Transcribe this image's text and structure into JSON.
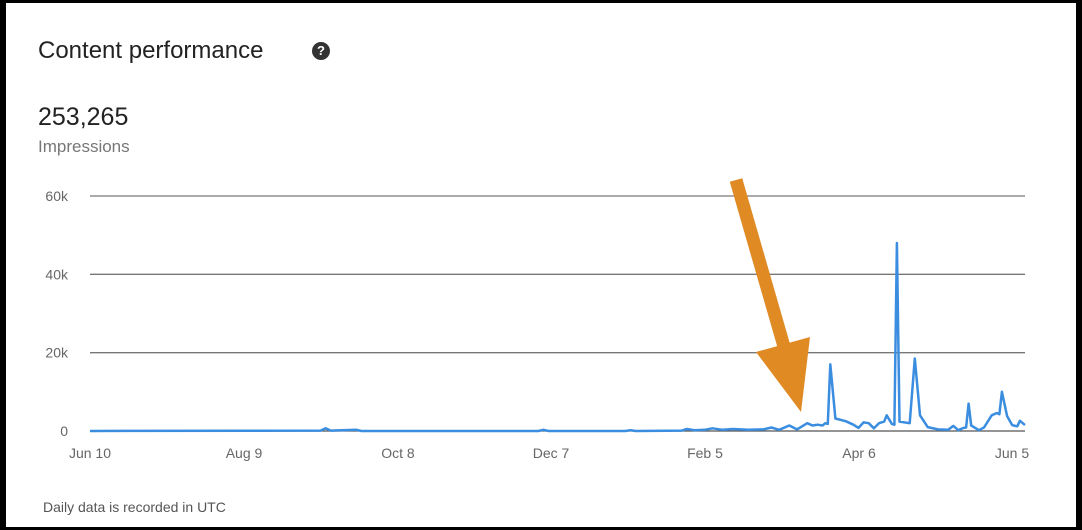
{
  "card": {
    "title": "Content performance",
    "help_icon": "question-circle-icon",
    "metric_value": "253,265",
    "metric_label": "Impressions",
    "footnote": "Daily data is recorded in UTC"
  },
  "annotation": {
    "type": "arrow",
    "color": "#E08A24"
  },
  "chart_data": {
    "type": "line",
    "title": "",
    "xlabel": "",
    "ylabel": "",
    "ylim": [
      0,
      60000
    ],
    "y_ticks": [
      "0",
      "20k",
      "40k",
      "60k"
    ],
    "y_tick_values": [
      0,
      20000,
      40000,
      60000
    ],
    "x_ticks": [
      "Jun 10",
      "Aug 9",
      "Oct 8",
      "Dec 7",
      "Feb 5",
      "Apr 6",
      "Jun 5"
    ],
    "grid": true,
    "line_color": "#3B8DE0",
    "series": [
      {
        "points": [
          [
            "Jun 10",
            0
          ],
          [
            "Sep 8",
            100
          ],
          [
            "Sep 10",
            700
          ],
          [
            "Sep 12",
            100
          ],
          [
            "Sep 22",
            300
          ],
          [
            "Sep 24",
            0
          ],
          [
            "Dec 2",
            0
          ],
          [
            "Dec 4",
            300
          ],
          [
            "Dec 6",
            0
          ],
          [
            "Jan 5",
            0
          ],
          [
            "Jan 7",
            200
          ],
          [
            "Jan 9",
            0
          ],
          [
            "Jan 27",
            100
          ],
          [
            "Jan 29",
            500
          ],
          [
            "Feb 1",
            200
          ],
          [
            "Feb 5",
            300
          ],
          [
            "Feb 8",
            700
          ],
          [
            "Feb 12",
            300
          ],
          [
            "Feb 16",
            500
          ],
          [
            "Feb 22",
            300
          ],
          [
            "Feb 28",
            400
          ],
          [
            "Mar 3",
            900
          ],
          [
            "Mar 6",
            300
          ],
          [
            "Mar 10",
            1400
          ],
          [
            "Mar 13",
            400
          ],
          [
            "Mar 17",
            2000
          ],
          [
            "Mar 19",
            1400
          ],
          [
            "Mar 21",
            1600
          ],
          [
            "Mar 23",
            1400
          ],
          [
            "Mar 24",
            2000
          ],
          [
            "Mar 25",
            1800
          ],
          [
            "Mar 26",
            17000
          ],
          [
            "Mar 28",
            3200
          ],
          [
            "Apr 1",
            2500
          ],
          [
            "Apr 4",
            1600
          ],
          [
            "Apr 6",
            800
          ],
          [
            "Apr 8",
            2200
          ],
          [
            "Apr 10",
            2000
          ],
          [
            "Apr 12",
            700
          ],
          [
            "Apr 14",
            2000
          ],
          [
            "Apr 16",
            2400
          ],
          [
            "Apr 17",
            4000
          ],
          [
            "Apr 19",
            1800
          ],
          [
            "Apr 20",
            1600
          ],
          [
            "Apr 21",
            48000
          ],
          [
            "Apr 22",
            2400
          ],
          [
            "Apr 26",
            2000
          ],
          [
            "Apr 28",
            18500
          ],
          [
            "Apr 30",
            4000
          ],
          [
            "May 3",
            1000
          ],
          [
            "May 7",
            400
          ],
          [
            "May 11",
            300
          ],
          [
            "May 13",
            1300
          ],
          [
            "May 15",
            200
          ],
          [
            "May 17",
            800
          ],
          [
            "May 18",
            900
          ],
          [
            "May 19",
            7000
          ],
          [
            "May 20",
            1400
          ],
          [
            "May 23",
            200
          ],
          [
            "May 25",
            900
          ],
          [
            "May 28",
            4000
          ],
          [
            "May 30",
            4600
          ],
          [
            "May 31",
            4300
          ],
          [
            "Jun 1",
            10000
          ],
          [
            "Jun 3",
            3800
          ],
          [
            "Jun 5",
            1500
          ],
          [
            "Jun 7",
            1200
          ],
          [
            "Jun 8",
            2600
          ],
          [
            "Jun 10",
            1500
          ]
        ]
      }
    ]
  }
}
